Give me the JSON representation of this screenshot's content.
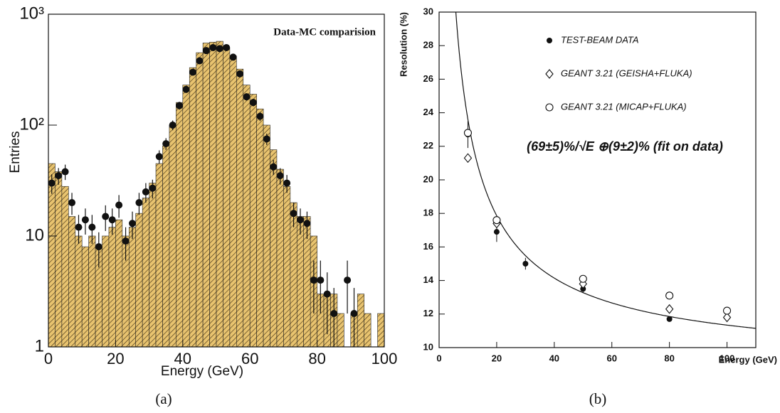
{
  "chart_data": [
    {
      "type": "histogram",
      "title": "Data-MC comparision",
      "x_label": "Energy (GeV)",
      "y_label": "Entries",
      "caption": "(a)",
      "log_y": true,
      "xlim": [
        0,
        100
      ],
      "ylim": [
        1,
        1000
      ],
      "xticks": [
        0,
        20,
        40,
        60,
        80,
        100
      ],
      "yticks": [
        1,
        10,
        {
          "value": 100,
          "label": "10²"
        },
        {
          "value": 1000,
          "label": "10³"
        }
      ],
      "bins": [
        0,
        2,
        4,
        6,
        8,
        10,
        12,
        14,
        16,
        18,
        20,
        22,
        24,
        26,
        28,
        30,
        32,
        34,
        36,
        38,
        40,
        42,
        44,
        46,
        48,
        50,
        52,
        54,
        56,
        58,
        60,
        62,
        64,
        66,
        68,
        70,
        72,
        74,
        76,
        78,
        80,
        82,
        84,
        86,
        88,
        90,
        92,
        94,
        96,
        98,
        100
      ],
      "counts": [
        45,
        38,
        28,
        15,
        10,
        8,
        10,
        8,
        10,
        12,
        14,
        10,
        12,
        16,
        22,
        30,
        45,
        65,
        100,
        160,
        230,
        330,
        450,
        550,
        560,
        570,
        500,
        420,
        320,
        230,
        190,
        140,
        100,
        60,
        40,
        28,
        20,
        15,
        15,
        10,
        3,
        3,
        3,
        2,
        1,
        2,
        3,
        2,
        1,
        2
      ],
      "color": "#e8c36f",
      "hatch": true,
      "points": {
        "color": "#111",
        "x": [
          1,
          3,
          5,
          7,
          9,
          11,
          13,
          15,
          17,
          19,
          21,
          23,
          25,
          27,
          29,
          31,
          33,
          35,
          37,
          39,
          41,
          43,
          45,
          47,
          49,
          51,
          53,
          55,
          57,
          59,
          61,
          63,
          65,
          67,
          69,
          71,
          73,
          75,
          77,
          79,
          81,
          83,
          85,
          89,
          91
        ],
        "values": [
          30,
          35,
          38,
          20,
          12,
          14,
          12,
          8,
          15,
          14,
          19,
          9,
          13,
          20,
          25,
          27,
          52,
          68,
          100,
          150,
          210,
          300,
          380,
          470,
          500,
          490,
          500,
          410,
          290,
          180,
          160,
          120,
          75,
          42,
          35,
          30,
          16,
          14,
          13,
          4,
          4,
          3,
          2,
          4,
          2
        ],
        "errors": [
          6,
          6,
          6,
          4.5,
          3.5,
          3.7,
          3.5,
          2.8,
          3.9,
          3.7,
          4.4,
          3,
          3.6,
          4.5,
          5,
          5.2,
          7.2,
          8.2,
          10,
          12.2,
          14.5,
          17.3,
          19.5,
          21.7,
          22.4,
          22.1,
          22.4,
          20.2,
          17,
          13.4,
          12.6,
          11,
          8.7,
          6.5,
          5.9,
          5.5,
          4,
          3.7,
          3.6,
          2,
          2,
          1.7,
          1.4,
          2,
          1.4
        ]
      }
    },
    {
      "type": "scatter",
      "x_label": "Energy  (GeV)",
      "y_label": "Resolution  (%)",
      "caption": "(b)",
      "xlim": [
        0,
        110
      ],
      "ylim": [
        10,
        30
      ],
      "xticks": [
        0,
        20,
        40,
        60,
        80,
        100
      ],
      "yticks": [
        10,
        12,
        14,
        16,
        18,
        20,
        22,
        24,
        26,
        28,
        30
      ],
      "annotation": "(69±5)%/√E ⊕(9±2)%  (fit on data)",
      "fit": {
        "stochastic": 69,
        "constant": 9
      },
      "series": [
        {
          "name": "TEST-BEAM DATA",
          "marker": "filled-circle",
          "color": "#111",
          "x": [
            10,
            20,
            30,
            50,
            80
          ],
          "values": [
            22.7,
            16.9,
            15.0,
            13.5,
            11.7
          ],
          "errors": [
            0.8,
            0.6,
            0.35,
            0.25,
            0.1
          ]
        },
        {
          "name": "GEANT 3.21 (GEISHA+FLUKA)",
          "marker": "diamond",
          "color": "#111",
          "x": [
            10,
            20,
            50,
            80,
            100
          ],
          "values": [
            21.3,
            17.4,
            13.8,
            12.3,
            11.8
          ]
        },
        {
          "name": "GEANT 3.21 (MICAP+FLUKA)",
          "marker": "circle",
          "color": "#111",
          "x": [
            10,
            20,
            50,
            80,
            100
          ],
          "values": [
            22.8,
            17.6,
            14.1,
            13.1,
            12.2
          ]
        }
      ]
    }
  ]
}
